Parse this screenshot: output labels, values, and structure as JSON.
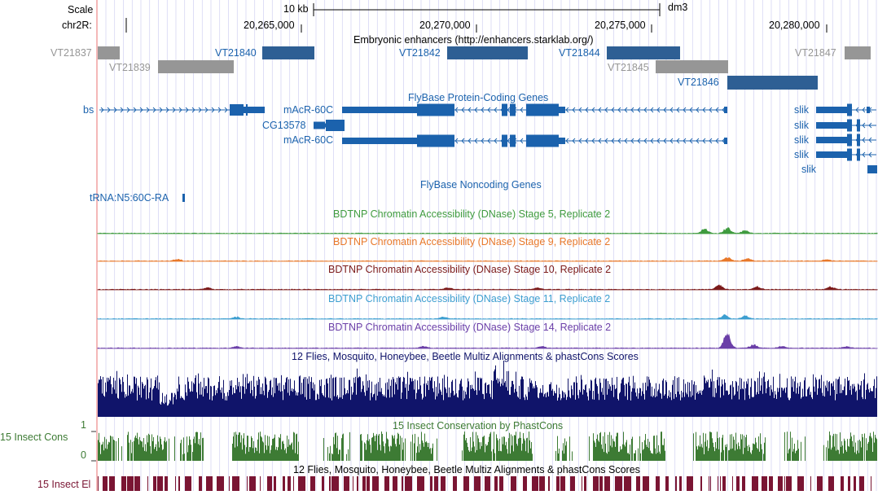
{
  "colors": {
    "blue": "#1b62ad",
    "feature_blue": "#2e5f94",
    "gray": "#969696",
    "green": "#3f9b3f",
    "orange": "#e8782a",
    "darkred": "#7b1a1a",
    "lightblue": "#3d9ed0",
    "purple": "#6b3fa8",
    "navy": "#10146a",
    "cons_green": "#3d7b34",
    "maroon": "#7a1533",
    "grid": "#c9c9f0",
    "left_line": "#f0a0a0"
  },
  "ruler": {
    "scale_label": "Scale",
    "scale_value": "10 kb",
    "assembly": "dm3",
    "chrom_label": "chr2R:",
    "positions": [
      "20,265,000",
      "20,270,000",
      "20,275,000",
      "20,280,000"
    ]
  },
  "enhancers": {
    "title": "Embryonic enhancers (http://enhancers.starklab.org/)",
    "items": [
      {
        "name": "VT21837",
        "strong": false
      },
      {
        "name": "VT21839",
        "strong": false
      },
      {
        "name": "VT21840",
        "strong": true
      },
      {
        "name": "VT21842",
        "strong": true
      },
      {
        "name": "VT21844",
        "strong": true
      },
      {
        "name": "VT21845",
        "strong": false
      },
      {
        "name": "VT21846",
        "strong": true
      },
      {
        "name": "VT21847",
        "strong": false
      }
    ]
  },
  "genes": {
    "title": "FlyBase Protein-Coding Genes",
    "items": [
      "bs",
      "mAcR-60C",
      "CG13578",
      "mAcR-60C",
      "slik",
      "slik",
      "slik",
      "slik",
      "slik"
    ]
  },
  "noncoding": {
    "title": "FlyBase Noncoding Genes",
    "items": [
      "tRNA:N5:60C-RA"
    ]
  },
  "dnase": [
    {
      "title": "BDTNP Chromatin Accessibility (DNase) Stage 5, Replicate 2",
      "color": "#3f9b3f"
    },
    {
      "title": "BDTNP Chromatin Accessibility (DNase) Stage 9, Replicate 2",
      "color": "#e8782a"
    },
    {
      "title": "BDTNP Chromatin Accessibility (DNase) Stage 10, Replicate 2",
      "color": "#7b1a1a"
    },
    {
      "title": "BDTNP Chromatin Accessibility (DNase) Stage 11, Replicate 2",
      "color": "#3d9ed0"
    },
    {
      "title": "BDTNP Chromatin Accessibility (DNase) Stage 14, Replicate 2",
      "color": "#6b3fa8"
    }
  ],
  "multiz": {
    "title": "12 Flies, Mosquito, Honeybee, Beetle Multiz Alignments & phastCons Scores"
  },
  "cons15": {
    "title": "15 Insect Conservation by PhastCons",
    "side_label": "15 Insect Cons",
    "y_max": "1",
    "y_min": "0"
  },
  "el15": {
    "title": "12 Flies, Mosquito, Honeybee, Beetle Multiz Alignments & phastCons Scores",
    "side_label": "15 Insect El"
  }
}
